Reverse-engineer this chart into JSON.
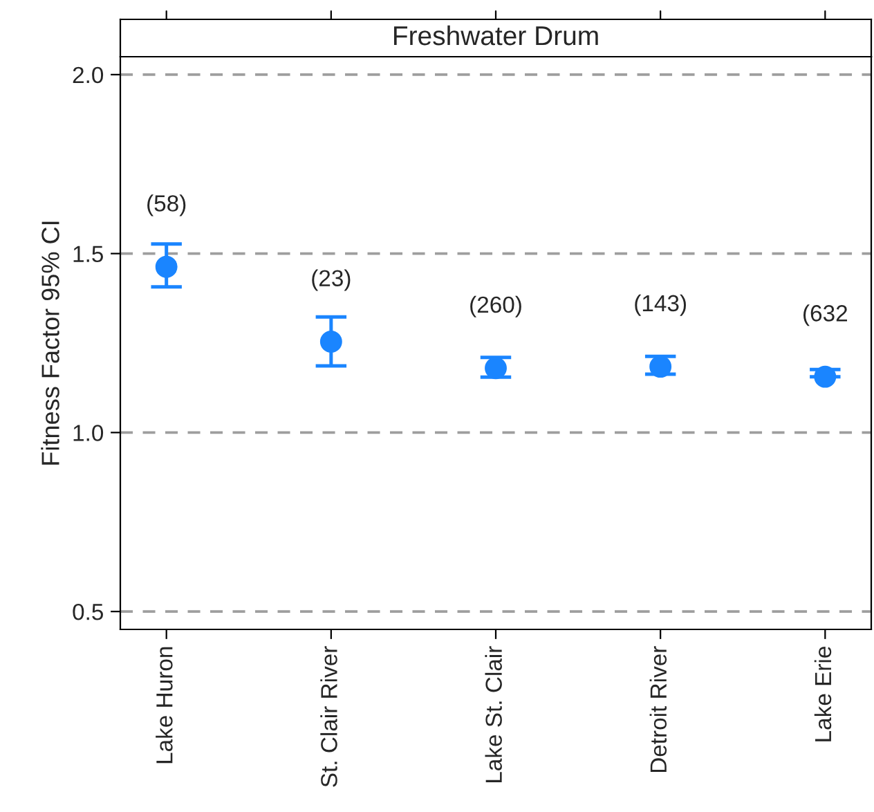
{
  "chart_data": {
    "type": "scatter",
    "title": "Freshwater Drum",
    "ylabel": "Fitness Factor 95% CI",
    "categories": [
      "Lake Huron",
      "St. Clair River",
      "Lake St. Clair",
      "Detroit River",
      "Lake Erie"
    ],
    "series": [
      {
        "color": "#1a85ff",
        "values": [
          1.463,
          1.254,
          1.18,
          1.184,
          1.156
        ],
        "errors": [
          [
            1.407,
            1.527
          ],
          [
            1.186,
            1.323
          ],
          [
            1.155,
            1.21
          ],
          [
            1.163,
            1.213
          ],
          [
            1.156,
            1.176
          ]
        ]
      }
    ],
    "annotations": [
      "(58)",
      "(23)",
      "(260)",
      "(143)",
      "(632"
    ],
    "ylim": [
      0.45,
      2.05
    ],
    "yticks": [
      {
        "value": 0.5,
        "label": "0.5"
      },
      {
        "value": 1.0,
        "label": "1.0"
      },
      {
        "value": 1.5,
        "label": "1.5"
      },
      {
        "value": 2.0,
        "label": "2.0"
      }
    ],
    "grid": "y",
    "marker": "circle",
    "legend": false
  }
}
